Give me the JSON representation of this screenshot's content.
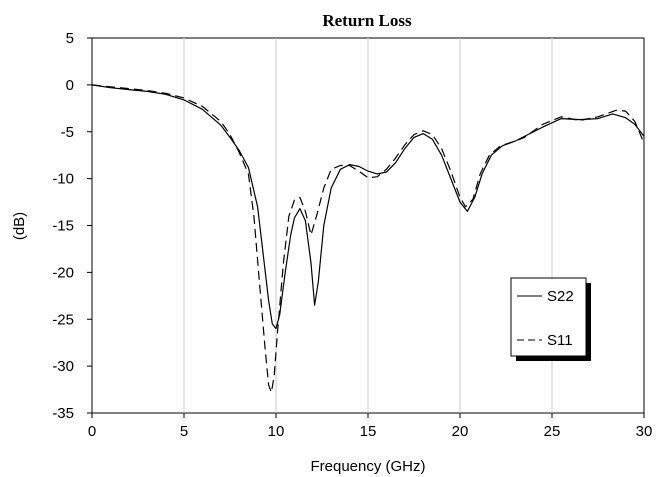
{
  "chart_data": {
    "type": "line",
    "title": "Return Loss",
    "xlabel": "Frequency (GHz)",
    "ylabel": "(dB)",
    "xlim": [
      0,
      30
    ],
    "ylim": [
      -35,
      5
    ],
    "x_ticks": [
      "0",
      "5",
      "10",
      "15",
      "20",
      "25",
      "30"
    ],
    "y_ticks": [
      "5",
      "0",
      "-5",
      "-10",
      "-15",
      "-20",
      "-25",
      "-30",
      "-35"
    ],
    "grid": "vertical",
    "legend_position": "lower-right",
    "series": [
      {
        "name": "S22",
        "style": "solid",
        "color": "#000000",
        "points": [
          [
            0,
            0
          ],
          [
            1,
            -0.3
          ],
          [
            2,
            -0.5
          ],
          [
            3,
            -0.7
          ],
          [
            4,
            -1.0
          ],
          [
            5,
            -1.6
          ],
          [
            6,
            -2.6
          ],
          [
            7,
            -4.3
          ],
          [
            7.5,
            -5.6
          ],
          [
            8,
            -7.0
          ],
          [
            8.5,
            -8.8
          ],
          [
            9,
            -13
          ],
          [
            9.3,
            -18
          ],
          [
            9.6,
            -23
          ],
          [
            9.8,
            -25.5
          ],
          [
            10,
            -26
          ],
          [
            10.2,
            -24.5
          ],
          [
            10.5,
            -20
          ],
          [
            10.8,
            -16
          ],
          [
            11,
            -14.2
          ],
          [
            11.3,
            -13.2
          ],
          [
            11.6,
            -14.5
          ],
          [
            11.9,
            -19
          ],
          [
            12.1,
            -23.5
          ],
          [
            12.3,
            -21
          ],
          [
            12.6,
            -15
          ],
          [
            13,
            -11
          ],
          [
            13.5,
            -9
          ],
          [
            14,
            -8.5
          ],
          [
            14.5,
            -8.7
          ],
          [
            15,
            -9.2
          ],
          [
            15.5,
            -9.5
          ],
          [
            16,
            -9.3
          ],
          [
            16.5,
            -8.3
          ],
          [
            17,
            -6.8
          ],
          [
            17.5,
            -5.6
          ],
          [
            18,
            -5.2
          ],
          [
            18.5,
            -5.8
          ],
          [
            19,
            -7.5
          ],
          [
            19.5,
            -10
          ],
          [
            20,
            -12.5
          ],
          [
            20.4,
            -13.5
          ],
          [
            20.8,
            -12
          ],
          [
            21.2,
            -9.5
          ],
          [
            21.7,
            -7.5
          ],
          [
            22.3,
            -6.5
          ],
          [
            23,
            -6.0
          ],
          [
            23.5,
            -5.5
          ],
          [
            24.5,
            -4.5
          ],
          [
            25.5,
            -3.6
          ],
          [
            26.5,
            -3.7
          ],
          [
            27.5,
            -3.6
          ],
          [
            28.3,
            -3.1
          ],
          [
            29,
            -3.5
          ],
          [
            29.5,
            -4.2
          ],
          [
            30,
            -5.5
          ]
        ]
      },
      {
        "name": "S11",
        "style": "dashed",
        "color": "#000000",
        "points": [
          [
            0,
            0
          ],
          [
            1,
            -0.2
          ],
          [
            2,
            -0.4
          ],
          [
            3,
            -0.6
          ],
          [
            4,
            -0.9
          ],
          [
            5,
            -1.4
          ],
          [
            6,
            -2.3
          ],
          [
            7,
            -3.9
          ],
          [
            7.5,
            -5.3
          ],
          [
            8,
            -7.2
          ],
          [
            8.5,
            -9.5
          ],
          [
            8.8,
            -14
          ],
          [
            9.1,
            -21
          ],
          [
            9.4,
            -28
          ],
          [
            9.6,
            -32
          ],
          [
            9.75,
            -32.8
          ],
          [
            9.9,
            -31
          ],
          [
            10.1,
            -26
          ],
          [
            10.4,
            -19
          ],
          [
            10.7,
            -14
          ],
          [
            11,
            -12.3
          ],
          [
            11.3,
            -12
          ],
          [
            11.6,
            -13.5
          ],
          [
            11.9,
            -16
          ],
          [
            12.2,
            -14
          ],
          [
            12.6,
            -11
          ],
          [
            13,
            -9
          ],
          [
            13.5,
            -8.6
          ],
          [
            14,
            -8.6
          ],
          [
            14.5,
            -9.2
          ],
          [
            15,
            -9.9
          ],
          [
            15.5,
            -9.8
          ],
          [
            16,
            -9.0
          ],
          [
            16.5,
            -7.8
          ],
          [
            17,
            -6.4
          ],
          [
            17.5,
            -5.3
          ],
          [
            18,
            -4.9
          ],
          [
            18.5,
            -5.3
          ],
          [
            19,
            -6.8
          ],
          [
            19.5,
            -9.2
          ],
          [
            20,
            -12.0
          ],
          [
            20.3,
            -13.0
          ],
          [
            20.7,
            -12.2
          ],
          [
            21.1,
            -9.5
          ],
          [
            21.6,
            -7.5
          ],
          [
            22.2,
            -6.5
          ],
          [
            23,
            -6.0
          ],
          [
            23.5,
            -5.6
          ],
          [
            24.5,
            -4.2
          ],
          [
            25.5,
            -3.4
          ],
          [
            26.5,
            -3.8
          ],
          [
            27.5,
            -3.4
          ],
          [
            28.5,
            -2.7
          ],
          [
            29,
            -2.8
          ],
          [
            29.5,
            -3.9
          ],
          [
            30,
            -6.2
          ]
        ]
      }
    ]
  }
}
